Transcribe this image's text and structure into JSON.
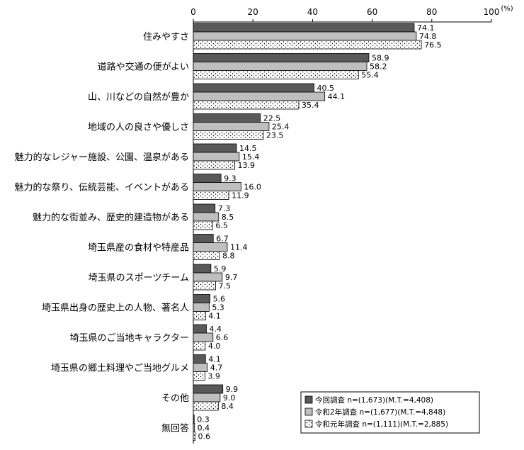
{
  "chart_data": {
    "type": "bar",
    "orientation": "horizontal",
    "unit_label": "(%)",
    "xlim": [
      0,
      100
    ],
    "xticks": [
      0,
      20,
      40,
      60,
      80,
      100
    ],
    "categories": [
      "住みやすさ",
      "道路や交通の便がよい",
      "山、川などの自然が豊か",
      "地域の人の良さや優しさ",
      "魅力的なレジャー施設、公園、温泉がある",
      "魅力的な祭り、伝統芸能、イベントがある",
      "魅力的な街並み、歴史的建造物がある",
      "埼玉県産の食材や特産品",
      "埼玉県のスポーツチーム",
      "埼玉県出身の歴史上の人物、著名人",
      "埼玉県のご当地キャラクター",
      "埼玉県の郷土料理やご当地グルメ",
      "その他",
      "無回答"
    ],
    "series": [
      {
        "name": "今回調査 n=(1,673)(M.T.=4,408)",
        "color": "#595959",
        "pattern": "solid",
        "values": [
          74.1,
          58.9,
          40.5,
          22.5,
          14.5,
          9.3,
          7.3,
          6.7,
          5.9,
          5.6,
          4.4,
          4.1,
          9.9,
          0.3
        ],
        "labels": [
          "74.1",
          "58.9",
          "40.5",
          "22.5",
          "14.5",
          "9.3",
          "7.3",
          "6.7",
          "5.9",
          "5.6",
          "4.4",
          "4.1",
          "9.9",
          "0.3"
        ]
      },
      {
        "name": "令和2年調査 n=(1,677)(M.T.=4,848)",
        "color": "#bfbfbf",
        "pattern": "solid",
        "values": [
          74.8,
          58.2,
          44.1,
          25.4,
          15.4,
          16.0,
          8.5,
          11.4,
          9.7,
          5.3,
          6.6,
          4.7,
          9.0,
          0.4
        ],
        "labels": [
          "74.8",
          "58.2",
          "44.1",
          "25.4",
          "15.4",
          "16.0",
          "8.5",
          "11.4",
          "9.7",
          "5.3",
          "6.6",
          "4.7",
          "9.0",
          "0.4"
        ]
      },
      {
        "name": "令和元年調査 n=(1,111)(M.T.=2,885)",
        "color": "#ffffff",
        "pattern": "dots",
        "values": [
          76.5,
          55.4,
          35.4,
          23.5,
          13.9,
          11.9,
          6.5,
          8.8,
          7.5,
          4.1,
          4.0,
          3.9,
          8.4,
          0.6
        ],
        "labels": [
          "76.5",
          "55.4",
          "35.4",
          "23.5",
          "13.9",
          "11.9",
          "6.5",
          "8.8",
          "7.5",
          "4.1",
          "4.0",
          "3.9",
          "8.4",
          "0.6"
        ]
      }
    ],
    "legend_position": "bottom-right",
    "grid": false
  }
}
